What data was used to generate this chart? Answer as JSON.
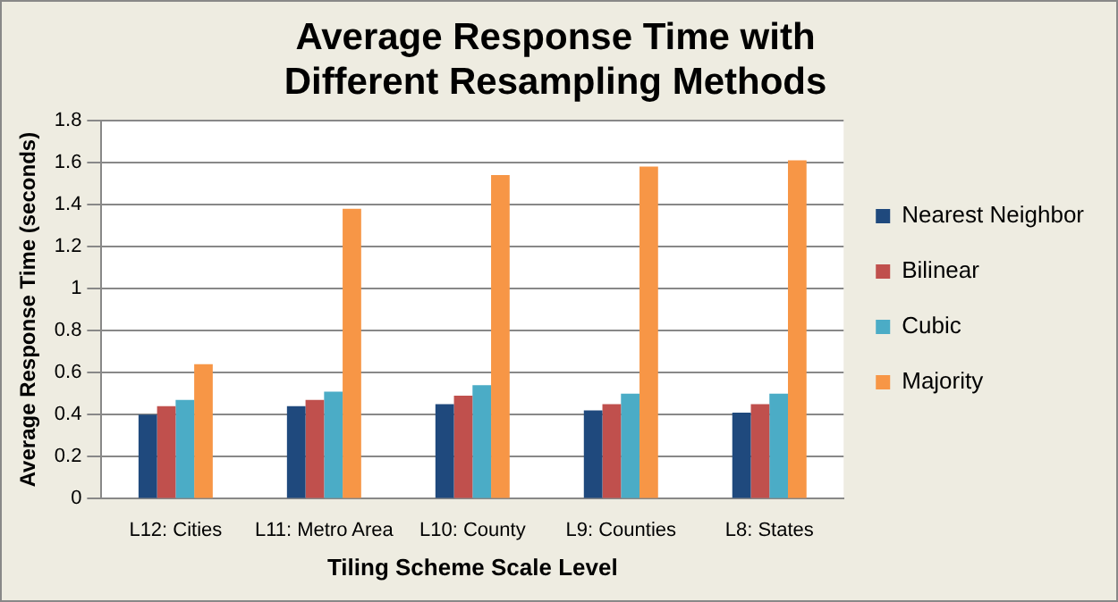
{
  "chart_data": {
    "type": "bar",
    "title": "Average Response Time with Different Resampling Methods",
    "xlabel": "Tiling Scheme Scale Level",
    "ylabel": "Average Response Time (seconds)",
    "categories": [
      "L12: Cities",
      "L11: Metro Area",
      "L10: County",
      "L9: Counties",
      "L8: States"
    ],
    "series": [
      {
        "name": "Nearest Neighbor",
        "color": "#1f497d",
        "values": [
          0.4,
          0.44,
          0.45,
          0.42,
          0.41
        ]
      },
      {
        "name": "Bilinear",
        "color": "#c0504d",
        "values": [
          0.44,
          0.47,
          0.49,
          0.45,
          0.45
        ]
      },
      {
        "name": "Cubic",
        "color": "#4bacc6",
        "values": [
          0.47,
          0.51,
          0.54,
          0.5,
          0.5
        ]
      },
      {
        "name": "Majority",
        "color": "#f79646",
        "values": [
          0.64,
          1.38,
          1.54,
          1.58,
          1.61
        ]
      }
    ],
    "ylim": [
      0,
      1.8
    ],
    "yticks": [
      0,
      0.2,
      0.4,
      0.6,
      0.8,
      1,
      1.2,
      1.4,
      1.6,
      1.8
    ],
    "grid": "y",
    "legend": "right"
  }
}
